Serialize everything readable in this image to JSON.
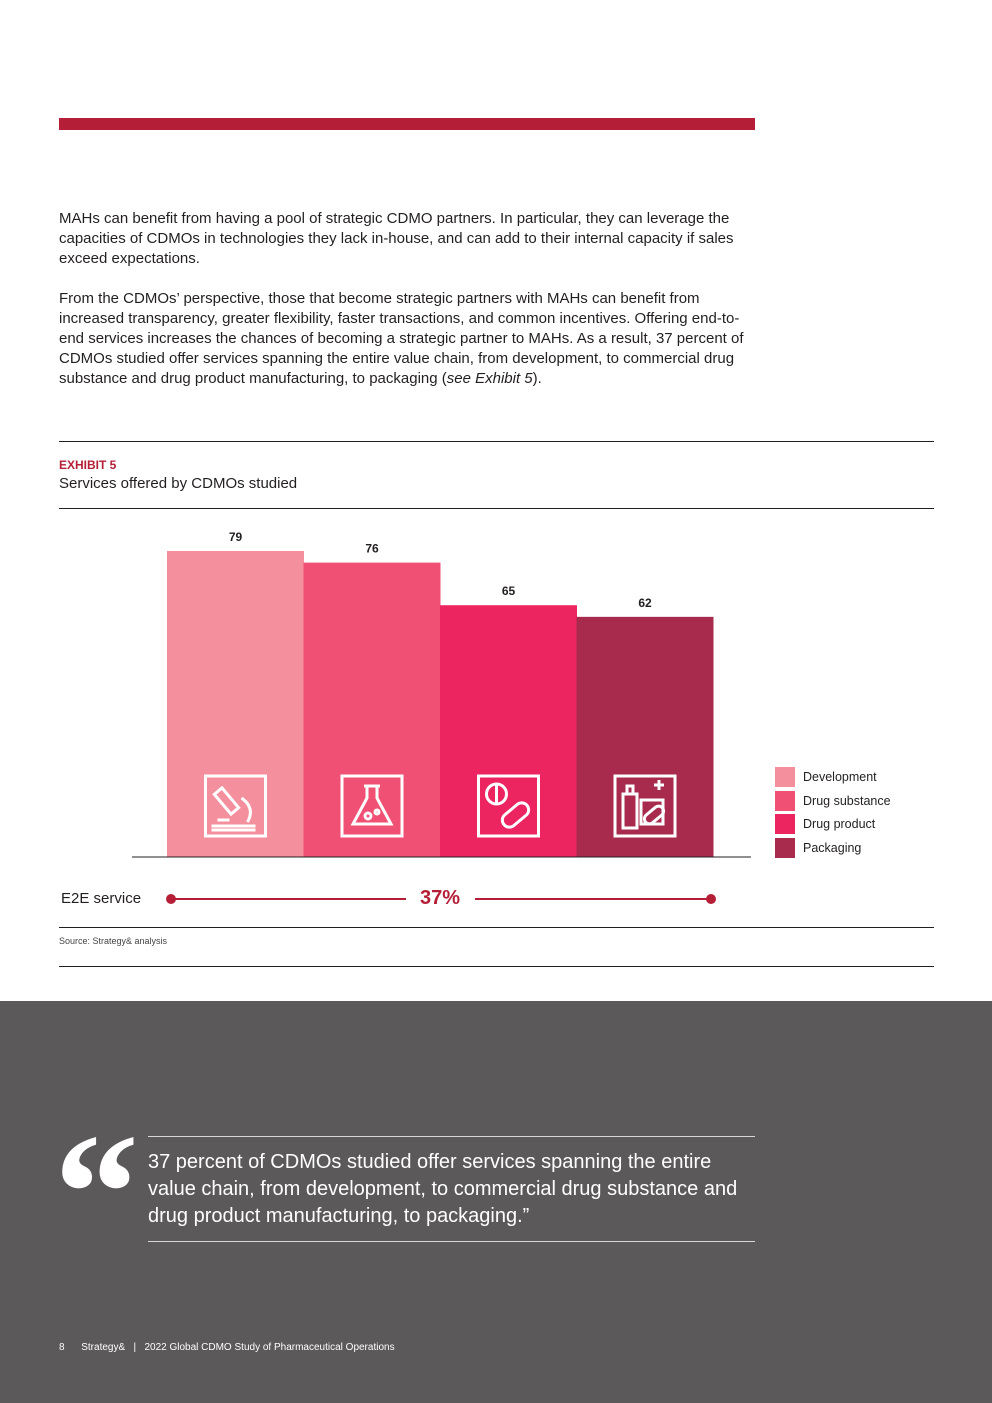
{
  "paragraphs": {
    "p1": "MAHs can benefit from having a pool of strategic CDMO partners. In particular, they can leverage the capacities of CDMOs in technologies they lack in-house, and can add to their internal capacity if sales exceed expectations.",
    "p2_before": "From the CDMOs’ perspective, those that become strategic partners with MAHs can benefit from increased transparency, greater flexibility, faster transactions, and common incentives. Offering end-to-end services increases the chances of becoming a strategic partner to MAHs. As a result, 37 percent of CDMOs studied offer services spanning the entire value chain, from development, to commercial drug substance and drug product manufacturing, to packaging (",
    "p2_link": "see Exhibit 5",
    "p2_after": ")."
  },
  "exhibit": {
    "label": "EXHIBIT 5",
    "title": "Services offered by CDMOs studied",
    "source": "Source: Strategy& analysis",
    "e2e_label": "E2E service",
    "e2e_value": "37%"
  },
  "chart_data": {
    "type": "bar",
    "title": "Services offered by CDMOs studied",
    "categories": [
      "Development",
      "Drug substance",
      "Drug product",
      "Packaging"
    ],
    "values": [
      79,
      76,
      65,
      62
    ],
    "colors": [
      "#f48f9e",
      "#ef5073",
      "#ec2460",
      "#a82b4e"
    ],
    "icons": [
      "microscope-icon",
      "flask-icon",
      "pills-icon",
      "medicine-package-icon"
    ],
    "value_labels": [
      "79",
      "76",
      "65",
      "62"
    ],
    "legend_position": "right",
    "grid": false
  },
  "quote": {
    "text": "37 percent of CDMOs studied offer services spanning the entire value chain, from development, to commercial drug substance and drug product manufacturing, to packaging.”"
  },
  "footer": {
    "page_number": "8",
    "brand": "Strategy&",
    "separator": "|",
    "publication": "2022 Global CDMO Study of Pharmaceutical Operations"
  }
}
